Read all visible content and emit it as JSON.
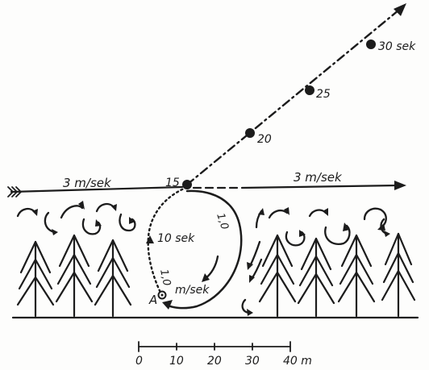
{
  "wind": {
    "left_label": "3 m/sek",
    "right_label": "3 m/sek"
  },
  "trajectory_times": [
    {
      "id": "t15",
      "label": "15"
    },
    {
      "id": "t20",
      "label": "20"
    },
    {
      "id": "t25",
      "label": "25"
    },
    {
      "id": "t30",
      "label": "30 sek"
    }
  ],
  "eddy": {
    "start_label": "A",
    "time_label": "10 sek",
    "speed_left": "1,0",
    "speed_right": "1,0",
    "speed_unit": "m/sek"
  },
  "scale": {
    "ticks": [
      "0",
      "10",
      "20",
      "30",
      "40 m"
    ]
  },
  "colors": {
    "ink": "#1c1c1c",
    "paper": "#fdfdfc"
  }
}
